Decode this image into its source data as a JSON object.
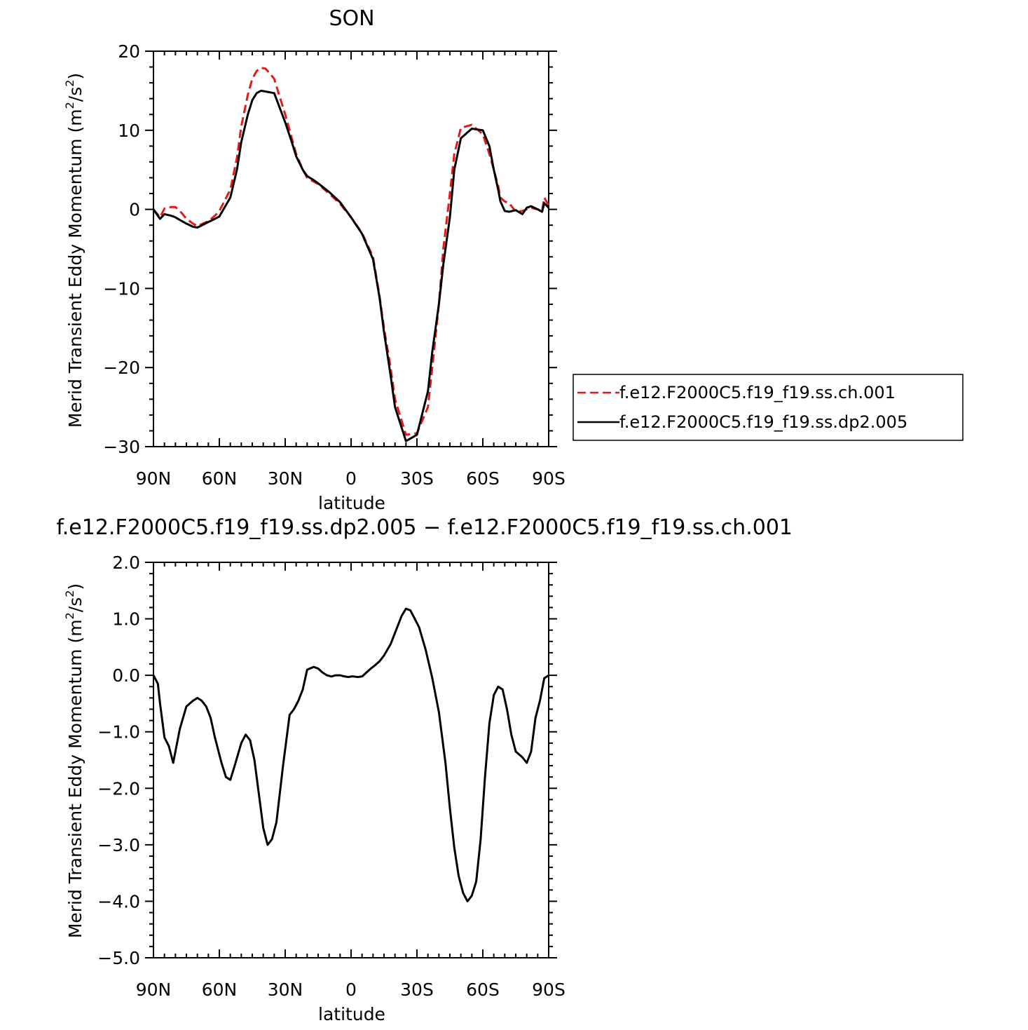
{
  "chart_data": [
    {
      "type": "line",
      "title": "SON",
      "xlabel": "latitude",
      "ylabel": "Merid Transient Eddy Momentum (m²/s²)",
      "xlim": [
        90,
        -90
      ],
      "ylim": [
        -30,
        20
      ],
      "x_ticks": [
        {
          "value": 90,
          "label": "90N"
        },
        {
          "value": 60,
          "label": "60N"
        },
        {
          "value": 30,
          "label": "30N"
        },
        {
          "value": 0,
          "label": "0"
        },
        {
          "value": -30,
          "label": "30S"
        },
        {
          "value": -60,
          "label": "60S"
        },
        {
          "value": -90,
          "label": "90S"
        }
      ],
      "y_ticks": [
        {
          "value": 20,
          "label": "20"
        },
        {
          "value": 10,
          "label": "10"
        },
        {
          "value": 0,
          "label": "0"
        },
        {
          "value": -10,
          "label": "−10"
        },
        {
          "value": -20,
          "label": "−20"
        },
        {
          "value": -30,
          "label": "−30"
        }
      ],
      "legend": "right",
      "grid": false,
      "series": [
        {
          "name": "f.e12.F2000C5.f19_f19.ss.ch.001",
          "color": "#e41a1a",
          "dash": "dashed",
          "x": [
            90,
            87,
            85,
            82,
            80,
            77,
            75,
            72,
            70,
            65,
            62,
            60,
            55,
            52,
            50,
            47,
            45,
            43,
            41,
            39,
            37,
            35,
            30,
            27,
            25,
            22,
            20,
            17,
            15,
            10,
            5,
            0,
            -5,
            -10,
            -13,
            -15,
            -18,
            -20,
            -25,
            -30,
            -35,
            -37,
            -40,
            -42,
            -45,
            -47,
            -50,
            -55,
            -60,
            -63,
            -65,
            -67,
            -68,
            -70,
            -72,
            -75,
            -78,
            -80,
            -82,
            -85,
            -87,
            -88,
            -90
          ],
          "y": [
            0,
            -1,
            0.1,
            0.3,
            0.3,
            -0.5,
            -1.2,
            -1.8,
            -2.1,
            -1.5,
            -0.8,
            -0.2,
            2.5,
            6.5,
            10.5,
            14.5,
            16.5,
            17.5,
            17.9,
            17.8,
            17.2,
            16.5,
            12,
            9,
            7,
            5,
            4,
            3.5,
            3.2,
            2,
            0.7,
            -1,
            -3,
            -6,
            -11,
            -15,
            -20,
            -24,
            -28.5,
            -28.3,
            -25,
            -20,
            -12,
            -5,
            2,
            7,
            10.3,
            10.7,
            9.5,
            7,
            5,
            3,
            1.5,
            1,
            0.8,
            -0.3,
            -0.2,
            0,
            0.2,
            0,
            -0.2,
            1.5,
            0.5
          ]
        },
        {
          "name": "f.e12.F2000C5.f19_f19.ss.dp2.005",
          "color": "#000000",
          "dash": "solid",
          "x": [
            90,
            87,
            85,
            82,
            80,
            77,
            75,
            72,
            70,
            65,
            62,
            60,
            55,
            52,
            50,
            47,
            45,
            43,
            41,
            39,
            37,
            35,
            30,
            27,
            25,
            22,
            20,
            17,
            15,
            10,
            5,
            0,
            -5,
            -10,
            -13,
            -15,
            -18,
            -20,
            -25,
            -30,
            -35,
            -37,
            -40,
            -42,
            -45,
            -47,
            -50,
            -55,
            -60,
            -63,
            -65,
            -67,
            -68,
            -70,
            -72,
            -75,
            -78,
            -80,
            -82,
            -85,
            -87,
            -88,
            -90
          ],
          "y": [
            0,
            -1.2,
            -0.6,
            -0.8,
            -1,
            -1.5,
            -1.8,
            -2.2,
            -2.3,
            -1.6,
            -1.2,
            -0.9,
            1.5,
            5,
            8.5,
            12,
            13.8,
            14.7,
            15,
            14.9,
            14.8,
            14.7,
            11,
            8.5,
            6.7,
            5,
            4.2,
            3.7,
            3.3,
            2.2,
            0.9,
            -1,
            -3.1,
            -6.3,
            -11.2,
            -15.5,
            -21,
            -25,
            -29.3,
            -28.5,
            -23,
            -18,
            -12,
            -7,
            -1,
            5,
            9,
            10.2,
            10,
            8,
            5,
            2.5,
            1,
            -0.2,
            -0.3,
            -0.1,
            -0.6,
            0.2,
            0.4,
            0,
            -0.3,
            0.8,
            0.2
          ]
        }
      ]
    },
    {
      "type": "line",
      "title": "f.e12.F2000C5.f19_f19.ss.dp2.005 − f.e12.F2000C5.f19_f19.ss.ch.001",
      "xlabel": "latitude",
      "ylabel": "Merid Transient Eddy Momentum (m²/s²)",
      "xlim": [
        90,
        -90
      ],
      "ylim": [
        -5,
        2
      ],
      "x_ticks": [
        {
          "value": 90,
          "label": "90N"
        },
        {
          "value": 60,
          "label": "60N"
        },
        {
          "value": 30,
          "label": "30N"
        },
        {
          "value": 0,
          "label": "0"
        },
        {
          "value": -30,
          "label": "30S"
        },
        {
          "value": -60,
          "label": "60S"
        },
        {
          "value": -90,
          "label": "90S"
        }
      ],
      "y_ticks": [
        {
          "value": 2,
          "label": "2.0"
        },
        {
          "value": 1,
          "label": "1.0"
        },
        {
          "value": 0,
          "label": "0.0"
        },
        {
          "value": -1,
          "label": "−1.0"
        },
        {
          "value": -2,
          "label": "−2.0"
        },
        {
          "value": -3,
          "label": "−3.0"
        },
        {
          "value": -4,
          "label": "−4.0"
        },
        {
          "value": -5,
          "label": "−5.0"
        }
      ],
      "grid": false,
      "series": [
        {
          "color": "#000000",
          "dash": "solid",
          "x": [
            90,
            88,
            87,
            85,
            83,
            81,
            80,
            78,
            75,
            72,
            70,
            68,
            66,
            64,
            62,
            59,
            57,
            55,
            53,
            50,
            48,
            46,
            44,
            42,
            40,
            38,
            36,
            34,
            31,
            28,
            26,
            24,
            22,
            20,
            17,
            15,
            13,
            11,
            9,
            7,
            5,
            3,
            1,
            0,
            -1,
            -3,
            -5,
            -7,
            -9,
            -11,
            -13,
            -15,
            -18,
            -21,
            -23,
            -25,
            -27,
            -29,
            -31,
            -34,
            -37,
            -40,
            -43,
            -45,
            -47,
            -49,
            -51,
            -53,
            -55,
            -57,
            -59,
            -61,
            -63,
            -65,
            -67,
            -69,
            -71,
            -73,
            -75,
            -78,
            -80,
            -82,
            -84,
            -86,
            -88,
            -90
          ],
          "y": [
            0,
            -0.15,
            -0.5,
            -1.1,
            -1.25,
            -1.55,
            -1.35,
            -0.95,
            -0.55,
            -0.45,
            -0.4,
            -0.45,
            -0.55,
            -0.75,
            -1.1,
            -1.55,
            -1.8,
            -1.85,
            -1.6,
            -1.2,
            -1.05,
            -1.15,
            -1.5,
            -2.1,
            -2.7,
            -3.0,
            -2.9,
            -2.6,
            -1.6,
            -0.7,
            -0.6,
            -0.45,
            -0.25,
            0.1,
            0.15,
            0.12,
            0.05,
            0,
            -0.02,
            0,
            0,
            -0.02,
            -0.03,
            -0.02,
            -0.02,
            -0.03,
            -0.02,
            0.05,
            0.12,
            0.18,
            0.25,
            0.35,
            0.55,
            0.85,
            1.05,
            1.18,
            1.15,
            1.0,
            0.85,
            0.45,
            -0.05,
            -0.65,
            -1.55,
            -2.35,
            -3.05,
            -3.55,
            -3.85,
            -4.0,
            -3.9,
            -3.65,
            -2.9,
            -1.8,
            -0.85,
            -0.35,
            -0.2,
            -0.25,
            -0.6,
            -1.05,
            -1.35,
            -1.45,
            -1.55,
            -1.35,
            -0.75,
            -0.45,
            -0.05,
            0
          ]
        }
      ]
    }
  ]
}
